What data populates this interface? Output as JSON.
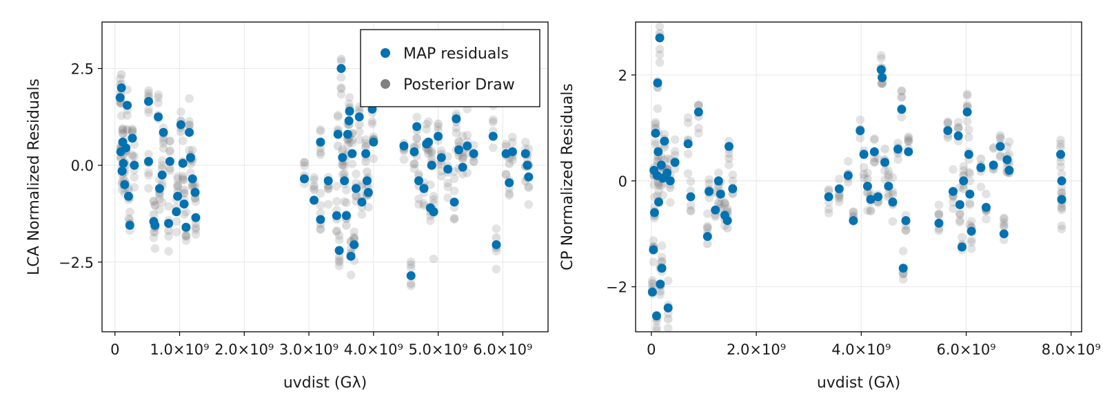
{
  "chart_data": [
    {
      "type": "scatter",
      "xlabel": "uvdist (Gλ)",
      "ylabel": "LCA Normalized Residuals",
      "xlim": [
        -200000000.0,
        6700000000.0
      ],
      "ylim": [
        -4.3,
        3.7
      ],
      "xticks": [
        0,
        1000000000.0,
        2000000000.0,
        3000000000.0,
        4000000000.0,
        5000000000.0,
        6000000000.0
      ],
      "xtick_labels": [
        "0",
        "1.0×10⁹",
        "2.0×10⁹",
        "3.0×10⁹",
        "4.0×10⁹",
        "5.0×10⁹",
        "6.0×10⁹"
      ],
      "yticks": [
        -2.5,
        0.0,
        2.5
      ],
      "ytick_labels": [
        "−2.5",
        "0.0",
        "2.5"
      ],
      "grid": true,
      "legend": {
        "placement": "top-right",
        "entries": [
          {
            "label": "MAP residuals",
            "color": "#0072b2"
          },
          {
            "label": "Posterior Draw",
            "color": "#808080"
          }
        ]
      },
      "series": [
        {
          "name": "MAP residuals",
          "color": "#0072b2",
          "points": [
            [
              80000000.0,
              1.75
            ],
            [
              90000000.0,
              0.35
            ],
            [
              100000000.0,
              2.0
            ],
            [
              110000000.0,
              -0.15
            ],
            [
              120000000.0,
              0.6
            ],
            [
              130000000.0,
              0.05
            ],
            [
              150000000.0,
              -0.5
            ],
            [
              170000000.0,
              0.45
            ],
            [
              190000000.0,
              1.55
            ],
            [
              210000000.0,
              -0.8
            ],
            [
              230000000.0,
              -1.55
            ],
            [
              270000000.0,
              0.7
            ],
            [
              300000000.0,
              0.0
            ],
            [
              520000000.0,
              1.65
            ],
            [
              520000000.0,
              0.1
            ],
            [
              600000000.0,
              -1.45
            ],
            [
              620000000.0,
              -1.55
            ],
            [
              670000000.0,
              1.25
            ],
            [
              690000000.0,
              -0.6
            ],
            [
              730000000.0,
              -0.25
            ],
            [
              750000000.0,
              0.85
            ],
            [
              830000000.0,
              -1.5
            ],
            [
              850000000.0,
              0.1
            ],
            [
              950000000.0,
              -1.2
            ],
            [
              970000000.0,
              -0.8
            ],
            [
              1020000000.0,
              1.05
            ],
            [
              1050000000.0,
              0.05
            ],
            [
              1070000000.0,
              -1.0
            ],
            [
              1100000000.0,
              -1.6
            ],
            [
              1150000000.0,
              0.85
            ],
            [
              1170000000.0,
              0.2
            ],
            [
              1200000000.0,
              -0.35
            ],
            [
              1240000000.0,
              -0.7
            ],
            [
              1250000000.0,
              -1.35
            ],
            [
              2930000000.0,
              -0.35
            ],
            [
              3080000000.0,
              -0.9
            ],
            [
              3180000000.0,
              0.6
            ],
            [
              3180000000.0,
              -1.4
            ],
            [
              3300000000.0,
              -0.4
            ],
            [
              3430000000.0,
              -1.3
            ],
            [
              3450000000.0,
              0.8
            ],
            [
              3470000000.0,
              -2.2
            ],
            [
              3500000000.0,
              2.5
            ],
            [
              3520000000.0,
              0.2
            ],
            [
              3550000000.0,
              -0.4
            ],
            [
              3580000000.0,
              -1.3
            ],
            [
              3600000000.0,
              0.8
            ],
            [
              3620000000.0,
              1.15
            ],
            [
              3630000000.0,
              1.4
            ],
            [
              3650000000.0,
              -2.35
            ],
            [
              3670000000.0,
              0.3
            ],
            [
              3700000000.0,
              -2.05
            ],
            [
              3730000000.0,
              -0.6
            ],
            [
              3780000000.0,
              1.25
            ],
            [
              3820000000.0,
              -0.95
            ],
            [
              3880000000.0,
              0.3
            ],
            [
              3900000000.0,
              -0.4
            ],
            [
              3920000000.0,
              -0.7
            ],
            [
              3980000000.0,
              1.45
            ],
            [
              4000000000.0,
              0.6
            ],
            [
              4470000000.0,
              0.5
            ],
            [
              4580000000.0,
              -2.85
            ],
            [
              4630000000.0,
              0.35
            ],
            [
              4670000000.0,
              1.0
            ],
            [
              4700000000.0,
              -0.4
            ],
            [
              4780000000.0,
              -0.6
            ],
            [
              4820000000.0,
              0.55
            ],
            [
              4850000000.0,
              0.6
            ],
            [
              4880000000.0,
              -1.1
            ],
            [
              4900000000.0,
              0.0
            ],
            [
              4930000000.0,
              -1.2
            ],
            [
              5000000000.0,
              0.75
            ],
            [
              5050000000.0,
              0.2
            ],
            [
              5150000000.0,
              -0.1
            ],
            [
              5250000000.0,
              -0.95
            ],
            [
              5280000000.0,
              1.2
            ],
            [
              5320000000.0,
              0.4
            ],
            [
              5380000000.0,
              -0.05
            ],
            [
              5450000000.0,
              0.5
            ],
            [
              5550000000.0,
              0.3
            ],
            [
              5850000000.0,
              0.75
            ],
            [
              5900000000.0,
              -2.05
            ],
            [
              6050000000.0,
              0.3
            ],
            [
              6100000000.0,
              -0.45
            ],
            [
              6150000000.0,
              0.35
            ],
            [
              6350000000.0,
              0.3
            ],
            [
              6380000000.0,
              0.0
            ],
            [
              6400000000.0,
              -0.3
            ]
          ]
        }
      ]
    },
    {
      "type": "scatter",
      "xlabel": "uvdist (Gλ)",
      "ylabel": "CP Normalized Residuals",
      "xlim": [
        -300000000.0,
        8200000000.0
      ],
      "ylim": [
        -2.85,
        3.0
      ],
      "xticks": [
        0,
        2000000000.0,
        4000000000.0,
        6000000000.0,
        8000000000.0
      ],
      "xtick_labels": [
        "0",
        "2.0×10⁹",
        "4.0×10⁹",
        "6.0×10⁹",
        "8.0×10⁹"
      ],
      "yticks": [
        -2,
        0,
        2
      ],
      "ytick_labels": [
        "−2",
        "0",
        "2"
      ],
      "grid": true,
      "series": [
        {
          "name": "MAP residuals",
          "color": "#0072b2",
          "points": [
            [
              20000000.0,
              -2.1
            ],
            [
              40000000.0,
              -1.3
            ],
            [
              50000000.0,
              0.2
            ],
            [
              60000000.0,
              -0.6
            ],
            [
              80000000.0,
              0.9
            ],
            [
              100000000.0,
              -2.55
            ],
            [
              110000000.0,
              0.1
            ],
            [
              120000000.0,
              1.85
            ],
            [
              130000000.0,
              0.55
            ],
            [
              140000000.0,
              -0.4
            ],
            [
              160000000.0,
              2.7
            ],
            [
              170000000.0,
              -1.95
            ],
            [
              190000000.0,
              0.3
            ],
            [
              200000000.0,
              -1.65
            ],
            [
              220000000.0,
              0.05
            ],
            [
              250000000.0,
              0.75
            ],
            [
              300000000.0,
              0.15
            ],
            [
              320000000.0,
              -2.4
            ],
            [
              360000000.0,
              0.0
            ],
            [
              450000000.0,
              0.35
            ],
            [
              700000000.0,
              0.7
            ],
            [
              750000000.0,
              -0.3
            ],
            [
              900000000.0,
              1.3
            ],
            [
              1070000000.0,
              -1.05
            ],
            [
              1100000000.0,
              -0.2
            ],
            [
              1220000000.0,
              -0.55
            ],
            [
              1280000000.0,
              0.0
            ],
            [
              1320000000.0,
              -0.25
            ],
            [
              1400000000.0,
              -0.65
            ],
            [
              1450000000.0,
              -0.75
            ],
            [
              1480000000.0,
              0.65
            ],
            [
              1550000000.0,
              -0.15
            ],
            [
              3380000000.0,
              -0.3
            ],
            [
              3580000000.0,
              -0.15
            ],
            [
              3750000000.0,
              0.1
            ],
            [
              3850000000.0,
              -0.75
            ],
            [
              3980000000.0,
              0.95
            ],
            [
              4050000000.0,
              0.5
            ],
            [
              4120000000.0,
              -0.1
            ],
            [
              4180000000.0,
              -0.35
            ],
            [
              4250000000.0,
              0.55
            ],
            [
              4320000000.0,
              -0.3
            ],
            [
              4380000000.0,
              2.1
            ],
            [
              4400000000.0,
              1.95
            ],
            [
              4450000000.0,
              0.35
            ],
            [
              4520000000.0,
              -0.1
            ],
            [
              4600000000.0,
              -0.4
            ],
            [
              4700000000.0,
              0.6
            ],
            [
              4770000000.0,
              1.35
            ],
            [
              4800000000.0,
              -1.65
            ],
            [
              4850000000.0,
              -0.75
            ],
            [
              4900000000.0,
              0.55
            ],
            [
              5480000000.0,
              -0.8
            ],
            [
              5650000000.0,
              0.95
            ],
            [
              5750000000.0,
              -0.2
            ],
            [
              5850000000.0,
              0.85
            ],
            [
              5880000000.0,
              -0.45
            ],
            [
              5920000000.0,
              -1.25
            ],
            [
              5950000000.0,
              0.0
            ],
            [
              6020000000.0,
              1.3
            ],
            [
              6050000000.0,
              0.5
            ],
            [
              6070000000.0,
              -0.25
            ],
            [
              6100000000.0,
              -0.95
            ],
            [
              6280000000.0,
              0.25
            ],
            [
              6380000000.0,
              -0.5
            ],
            [
              6520000000.0,
              0.3
            ],
            [
              6650000000.0,
              0.65
            ],
            [
              6720000000.0,
              -1.0
            ],
            [
              6780000000.0,
              0.4
            ],
            [
              6820000000.0,
              0.2
            ],
            [
              7800000000.0,
              0.5
            ],
            [
              7820000000.0,
              0.0
            ],
            [
              7820000000.0,
              -0.35
            ]
          ]
        }
      ]
    }
  ]
}
